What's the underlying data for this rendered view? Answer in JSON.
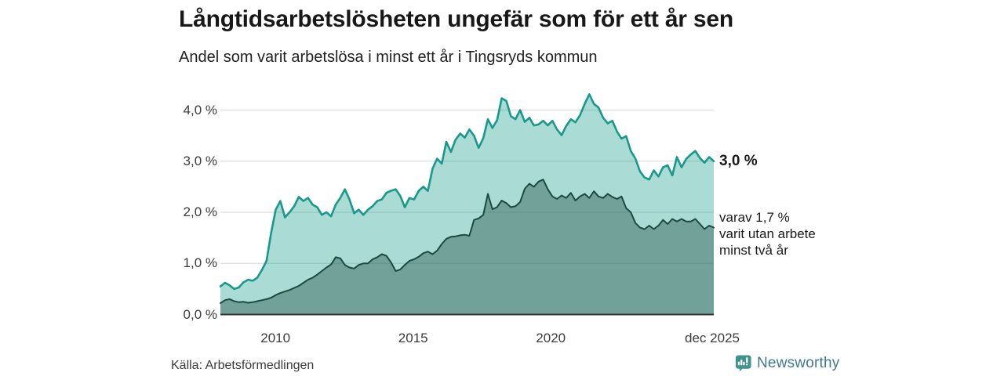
{
  "header": {
    "title": "Långtidsarbetslösheten ungefär som för ett år sen",
    "subtitle": "Andel som varit arbetslösa i minst ett år i Tingsryds kommun"
  },
  "chart_data": {
    "type": "area",
    "unit": "%",
    "grid": "horizontal",
    "ylim": [
      0,
      4.35
    ],
    "x_start_year": 2008.0,
    "x_end_year": 2025.92,
    "x_step_years": 0.1667,
    "x_axis_ticks": [
      {
        "label": "2010",
        "year": 2010
      },
      {
        "label": "2015",
        "year": 2015
      },
      {
        "label": "2020",
        "year": 2020
      },
      {
        "label": "dec 2025",
        "year": 2025.92
      }
    ],
    "y_axis_ticks": [
      {
        "label": "4,0 %",
        "value": 4
      },
      {
        "label": "3,0 %",
        "value": 3
      },
      {
        "label": "2,0 %",
        "value": 2
      },
      {
        "label": "1,0 %",
        "value": 1
      },
      {
        "label": "0,0 %",
        "value": 0
      }
    ],
    "series": [
      {
        "name": "Andel arbetslösa minst ett år",
        "end_value": "3,0 %",
        "line_color": "#18998b",
        "fill_color": "rgba(26,156,140,0.37)",
        "line_width": 2.6,
        "values": [
          0.55,
          0.62,
          0.57,
          0.5,
          0.53,
          0.63,
          0.68,
          0.66,
          0.72,
          0.87,
          1.05,
          1.6,
          2.05,
          2.22,
          1.9,
          2.0,
          2.12,
          2.3,
          2.22,
          2.28,
          2.15,
          2.1,
          1.95,
          2.0,
          1.92,
          2.15,
          2.28,
          2.45,
          2.25,
          1.98,
          2.05,
          1.95,
          2.05,
          2.12,
          2.22,
          2.25,
          2.38,
          2.42,
          2.45,
          2.32,
          2.1,
          2.28,
          2.25,
          2.42,
          2.5,
          2.42,
          2.85,
          3.05,
          2.95,
          3.38,
          3.18,
          3.42,
          3.54,
          3.46,
          3.62,
          3.5,
          3.26,
          3.45,
          3.82,
          3.65,
          3.8,
          4.23,
          4.18,
          3.88,
          3.82,
          4.0,
          3.77,
          3.85,
          3.7,
          3.72,
          3.79,
          3.7,
          3.79,
          3.62,
          3.51,
          3.69,
          3.82,
          3.76,
          3.9,
          4.12,
          4.31,
          4.12,
          4.05,
          3.85,
          3.74,
          3.79,
          3.58,
          3.44,
          3.49,
          3.2,
          3.05,
          2.8,
          2.68,
          2.64,
          2.82,
          2.7,
          2.88,
          2.92,
          2.72,
          3.08,
          2.88,
          3.04,
          3.13,
          3.2,
          3.06,
          2.97,
          3.08,
          3.0
        ]
      },
      {
        "name": "varav utan arbete minst två år",
        "end_value": "1,7 %",
        "line_color": "#1c4a40",
        "fill_color": "rgba(42,90,80,0.45)",
        "line_width": 2,
        "values": [
          0.22,
          0.28,
          0.3,
          0.26,
          0.24,
          0.25,
          0.23,
          0.24,
          0.26,
          0.28,
          0.3,
          0.33,
          0.38,
          0.42,
          0.45,
          0.48,
          0.52,
          0.56,
          0.62,
          0.68,
          0.72,
          0.78,
          0.85,
          0.92,
          0.98,
          1.12,
          1.1,
          0.97,
          0.92,
          0.9,
          0.97,
          1.0,
          1.0,
          1.08,
          1.12,
          1.18,
          1.15,
          1.02,
          0.85,
          0.88,
          0.97,
          1.05,
          1.08,
          1.13,
          1.2,
          1.23,
          1.18,
          1.25,
          1.38,
          1.48,
          1.52,
          1.53,
          1.55,
          1.56,
          1.54,
          1.85,
          1.88,
          1.95,
          2.36,
          2.06,
          2.1,
          2.23,
          2.18,
          2.1,
          2.12,
          2.2,
          2.46,
          2.56,
          2.5,
          2.6,
          2.64,
          2.45,
          2.31,
          2.26,
          2.33,
          2.28,
          2.38,
          2.23,
          2.31,
          2.36,
          2.28,
          2.41,
          2.31,
          2.28,
          2.36,
          2.3,
          2.26,
          2.31,
          2.08,
          2.0,
          1.79,
          1.7,
          1.67,
          1.74,
          1.67,
          1.74,
          1.85,
          1.77,
          1.87,
          1.82,
          1.87,
          1.82,
          1.82,
          1.87,
          1.77,
          1.67,
          1.74,
          1.7
        ]
      }
    ],
    "title": "Långtidsarbetslösheten ungefär som för ett år sen",
    "xlabel": "",
    "ylabel": ""
  },
  "annotations": {
    "total_end": "3,0 %",
    "secondary_lines": [
      "varav 1,7 %",
      "varit utan arbete",
      "minst två år"
    ]
  },
  "footer": {
    "source": "Källa: Arbetsförmedlingen",
    "brand": "Newsworthy"
  },
  "colors": {
    "accent_teal": "#18998b",
    "dark_green": "#1c4a40",
    "brand_teal": "#40928c",
    "brand_text": "#3e7a8c",
    "gridline": "#dcdcdc",
    "axis": "#333333"
  }
}
